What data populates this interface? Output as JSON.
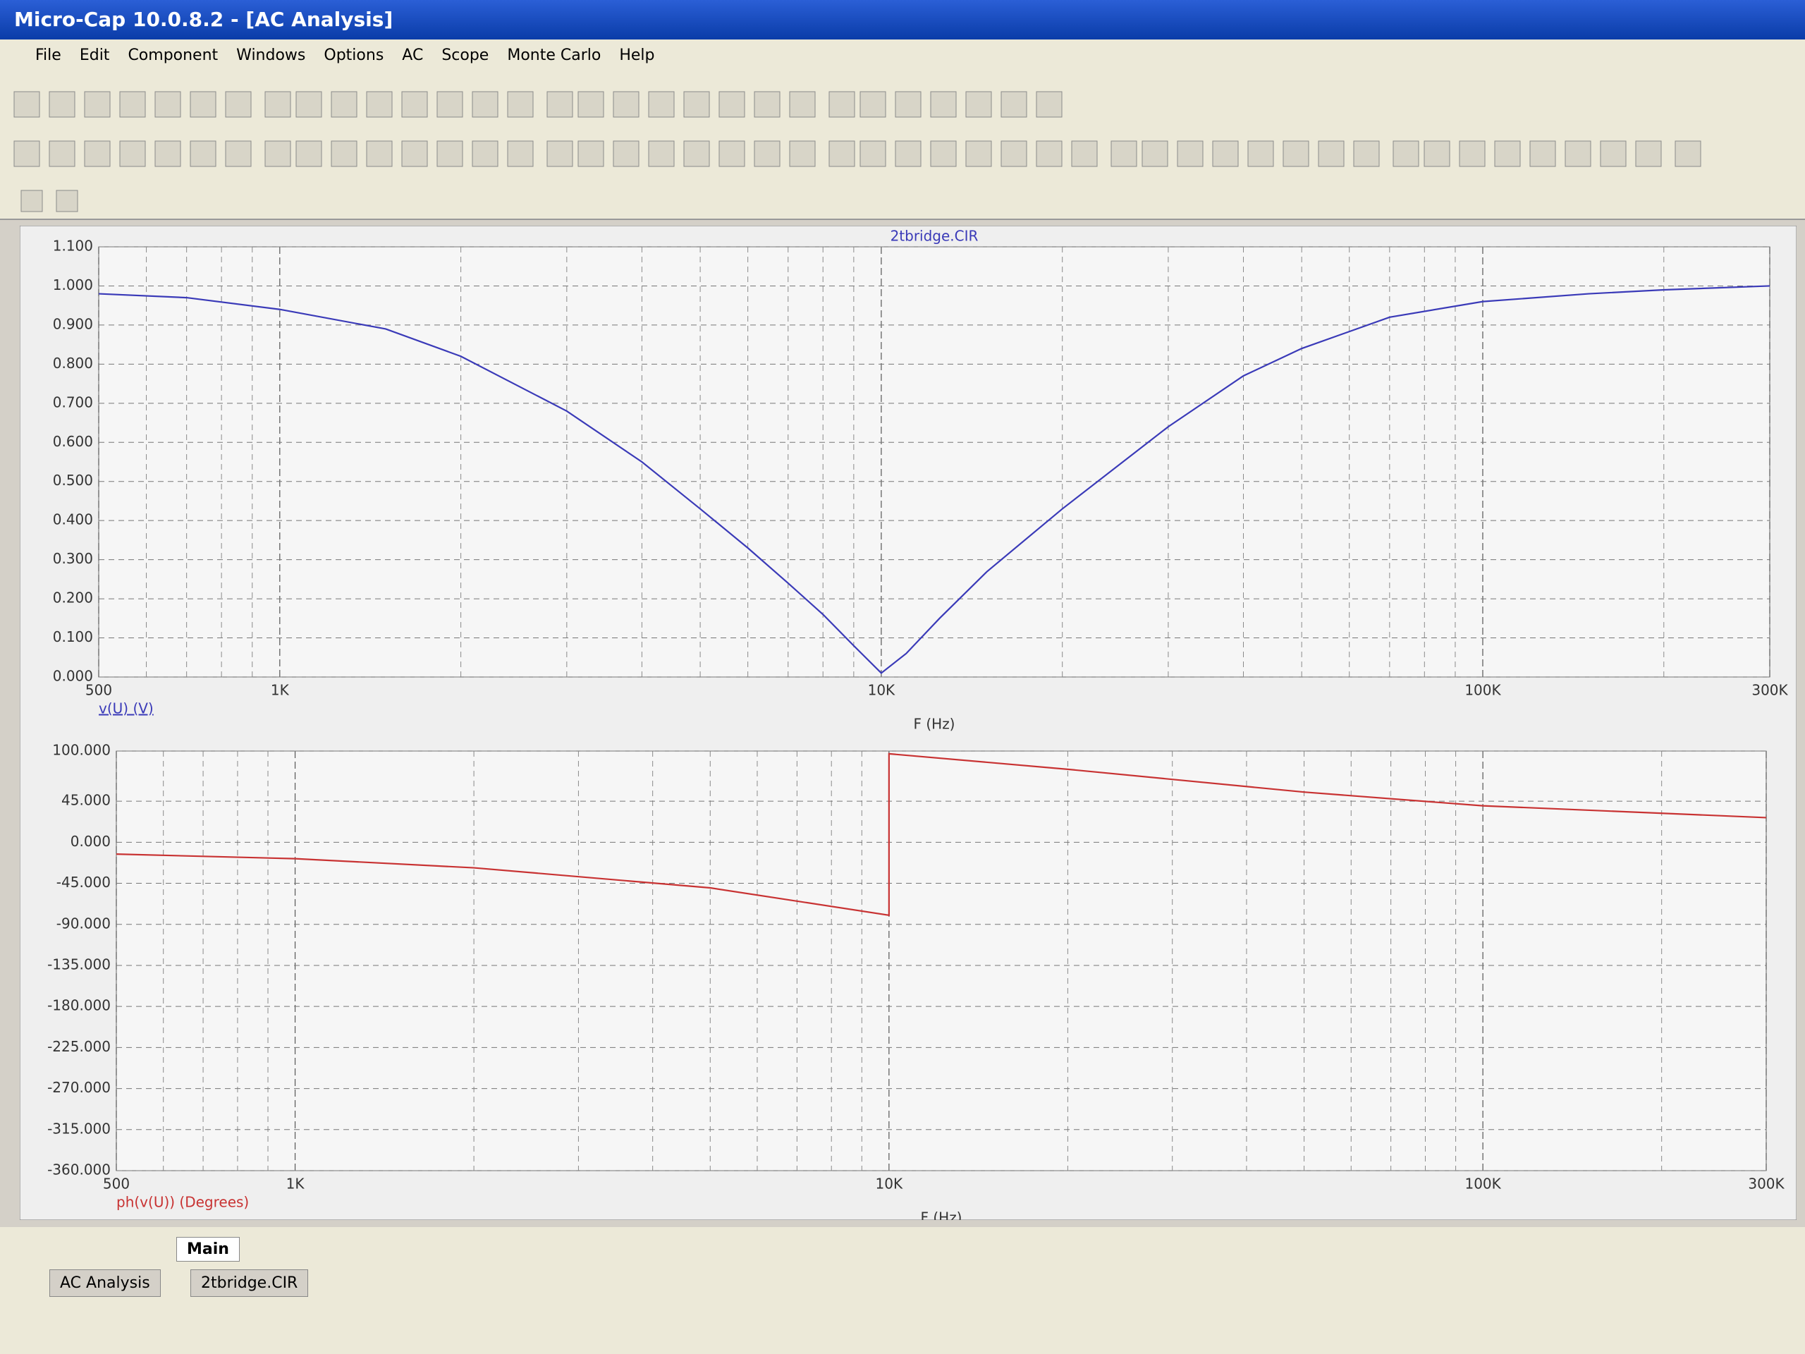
{
  "window": {
    "title": "Micro-Cap 10.0.8.2 - [AC Analysis]",
    "menu": [
      "File",
      "Edit",
      "Component",
      "Windows",
      "Options",
      "AC",
      "Scope",
      "Monte Carlo",
      "Help"
    ]
  },
  "chart_data": [
    {
      "type": "line",
      "title": "2tbridge.CIR",
      "x_label": "F (Hz)",
      "y_label": "v(U) (V)",
      "x_scale": "log",
      "grid": true,
      "xlim": [
        500,
        300000
      ],
      "xticks": [
        500,
        {
          "value": 1000,
          "label": "1K"
        },
        {
          "value": 10000,
          "label": "10K"
        },
        {
          "value": 100000,
          "label": "100K"
        },
        {
          "value": 300000,
          "label": "300K"
        }
      ],
      "ylim": [
        0,
        1.1
      ],
      "yticks": [
        {
          "value": 0,
          "label": "0.000"
        },
        {
          "value": 0.1,
          "label": "0.100"
        },
        {
          "value": 0.2,
          "label": "0.200"
        },
        {
          "value": 0.3,
          "label": "0.300"
        },
        {
          "value": 0.4,
          "label": "0.400"
        },
        {
          "value": 0.5,
          "label": "0.500"
        },
        {
          "value": 0.6,
          "label": "0.600"
        },
        {
          "value": 0.7,
          "label": "0.700"
        },
        {
          "value": 0.8,
          "label": "0.800"
        },
        {
          "value": 0.9,
          "label": "0.900"
        },
        {
          "value": 1,
          "label": "1.000"
        },
        {
          "value": 1.1,
          "label": "1.100"
        }
      ],
      "x": [
        500,
        700,
        1000,
        1500,
        2000,
        3000,
        4000,
        5000,
        6000,
        7000,
        8000,
        9000,
        10000,
        11000,
        12500,
        15000,
        20000,
        30000,
        40000,
        50000,
        70000,
        100000,
        150000,
        200000,
        300000
      ],
      "series": [
        {
          "color": "#3a3ab8",
          "values": [
            0.98,
            0.97,
            0.94,
            0.89,
            0.82,
            0.68,
            0.55,
            0.43,
            0.33,
            0.24,
            0.16,
            0.08,
            0.01,
            0.06,
            0.15,
            0.27,
            0.43,
            0.64,
            0.77,
            0.84,
            0.92,
            0.96,
            0.98,
            0.99,
            1.0
          ]
        }
      ]
    },
    {
      "type": "line",
      "x_label": "F (Hz)",
      "y_label": "ph(v(U)) (Degrees)",
      "x_scale": "log",
      "grid": true,
      "xlim": [
        500,
        300000
      ],
      "xticks": [
        500,
        {
          "value": 1000,
          "label": "1K"
        },
        {
          "value": 10000,
          "label": "10K"
        },
        {
          "value": 100000,
          "label": "100K"
        },
        {
          "value": 300000,
          "label": "300K"
        }
      ],
      "ylim": [
        -360,
        100
      ],
      "yticks": [
        {
          "value": 100,
          "label": "100.000"
        },
        {
          "value": 45,
          "label": "45.000"
        },
        {
          "value": 0,
          "label": "0.000"
        },
        {
          "value": -45,
          "label": "-45.000"
        },
        {
          "value": -90,
          "label": "-90.000"
        },
        {
          "value": -135,
          "label": "-135.000"
        },
        {
          "value": -180,
          "label": "-180.000"
        },
        {
          "value": -225,
          "label": "-225.000"
        },
        {
          "value": -270,
          "label": "-270.000"
        },
        {
          "value": -315,
          "label": "-315.000"
        },
        {
          "value": -360,
          "label": "-360.000"
        }
      ],
      "x": [
        500,
        1000,
        2000,
        5000,
        10000,
        10000,
        20000,
        50000,
        100000,
        300000
      ],
      "series": [
        {
          "color": "#c83232",
          "values": [
            -13,
            -18,
            -28,
            -50,
            -80,
            97,
            80,
            55,
            40,
            27
          ]
        }
      ]
    }
  ],
  "page_tabs": [
    "Main"
  ],
  "window_tabs": [
    "AC Analysis",
    "2tbridge.CIR"
  ]
}
